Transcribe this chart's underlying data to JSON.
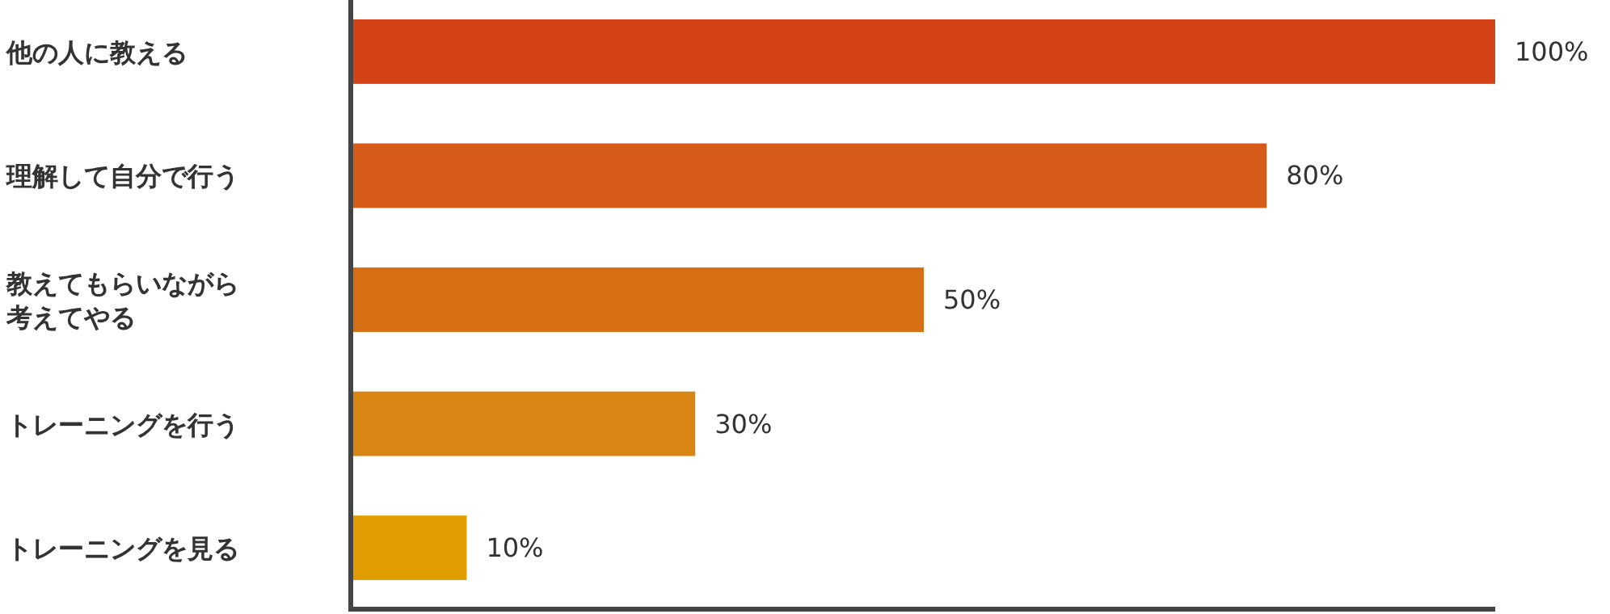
{
  "chart_data": {
    "type": "bar",
    "orientation": "horizontal",
    "categories": [
      "他の人に教える",
      "理解して自分で行う",
      "教えてもらいながら考えてやる",
      "トレーニングを行う",
      "トレーニングを見る"
    ],
    "values": [
      100,
      80,
      50,
      30,
      10
    ],
    "colors": [
      "#d44218",
      "#d65a18",
      "#d66f14",
      "#d88514",
      "#e09c00"
    ],
    "value_labels": [
      "100%",
      "80%",
      "50%",
      "30%",
      "10%"
    ],
    "xlim": [
      0,
      100
    ],
    "tick_labels": "y"
  }
}
